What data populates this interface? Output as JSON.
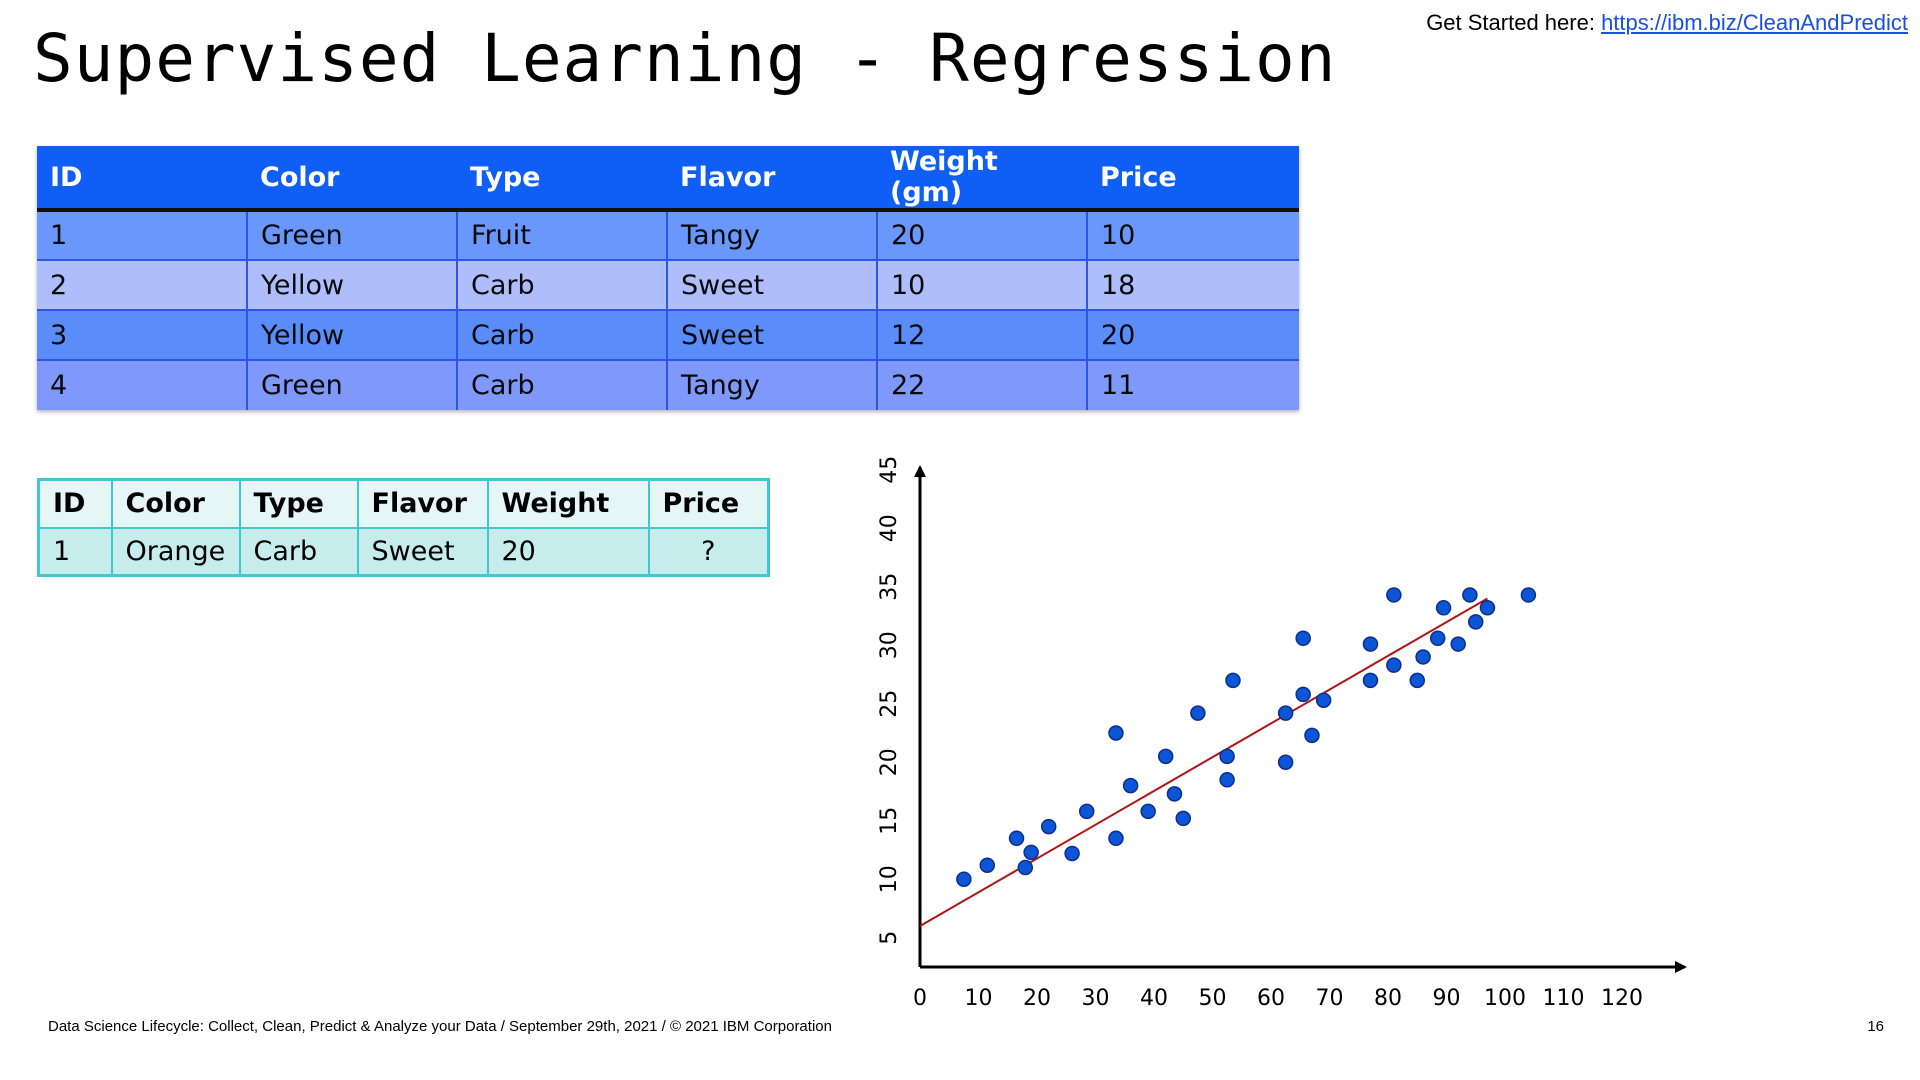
{
  "header": {
    "title": "Supervised Learning - Regression",
    "link_prefix": "Get Started here: ",
    "link_text": "https://ibm.biz/CleanAndPredict"
  },
  "training_table": {
    "columns": [
      "ID",
      "Color",
      "Type",
      "Flavor",
      "Weight (gm)",
      "Price"
    ],
    "rows": [
      [
        "1",
        "Green",
        "Fruit",
        "Tangy",
        "20",
        "10"
      ],
      [
        "2",
        "Yellow",
        "Carb",
        "Sweet",
        "10",
        "18"
      ],
      [
        "3",
        "Yellow",
        "Carb",
        "Sweet",
        "12",
        "20"
      ],
      [
        "4",
        "Green",
        "Carb",
        "Tangy",
        "22",
        "11"
      ]
    ]
  },
  "query_table": {
    "columns": [
      "ID",
      "Color",
      "Type",
      "Flavor",
      "Weight",
      "Price"
    ],
    "rows": [
      [
        "1",
        "Orange",
        "Carb",
        "Sweet",
        "20",
        "?"
      ]
    ]
  },
  "chart_data": {
    "type": "scatter",
    "xlabel": "",
    "ylabel": "",
    "xlim": [
      0,
      130
    ],
    "ylim": [
      3,
      45
    ],
    "x_ticks": [
      0,
      10,
      20,
      30,
      40,
      50,
      60,
      70,
      80,
      90,
      100,
      110,
      120
    ],
    "y_ticks": [
      5,
      10,
      15,
      20,
      25,
      30,
      35,
      40,
      45
    ],
    "point_color": "#0b55d6",
    "line_color": "#b01515",
    "points": [
      [
        7.5,
        10
      ],
      [
        11.5,
        11.2
      ],
      [
        16.5,
        13.5
      ],
      [
        18,
        11
      ],
      [
        19,
        12.3
      ],
      [
        22,
        14.5
      ],
      [
        26,
        12.2
      ],
      [
        28.5,
        15.8
      ],
      [
        33.5,
        13.5
      ],
      [
        33.5,
        22.5
      ],
      [
        36,
        18
      ],
      [
        39,
        15.8
      ],
      [
        42,
        20.5
      ],
      [
        43.5,
        17.3
      ],
      [
        45,
        15.2
      ],
      [
        47.5,
        24.2
      ],
      [
        52.5,
        18.5
      ],
      [
        52.5,
        20.5
      ],
      [
        53.5,
        27
      ],
      [
        62.5,
        20
      ],
      [
        62.5,
        24.2
      ],
      [
        65.5,
        30.6
      ],
      [
        65.5,
        25.8
      ],
      [
        67,
        22.3
      ],
      [
        69,
        25.3
      ],
      [
        77,
        27
      ],
      [
        77,
        30.1
      ],
      [
        81,
        28.3
      ],
      [
        81,
        34.3
      ],
      [
        85,
        27
      ],
      [
        86,
        29
      ],
      [
        88.5,
        30.6
      ],
      [
        89.5,
        33.2
      ],
      [
        92,
        30.1
      ],
      [
        94,
        34.3
      ],
      [
        95,
        32
      ],
      [
        97,
        33.2
      ],
      [
        104,
        34.3
      ]
    ],
    "fit_line": [
      [
        0,
        6
      ],
      [
        97,
        34
      ]
    ]
  },
  "footer": {
    "text": "Data Science Lifecycle: Collect, Clean, Predict & Analyze your Data / September 29th, 2021 / © 2021 IBM Corporation",
    "page_number": "16"
  }
}
